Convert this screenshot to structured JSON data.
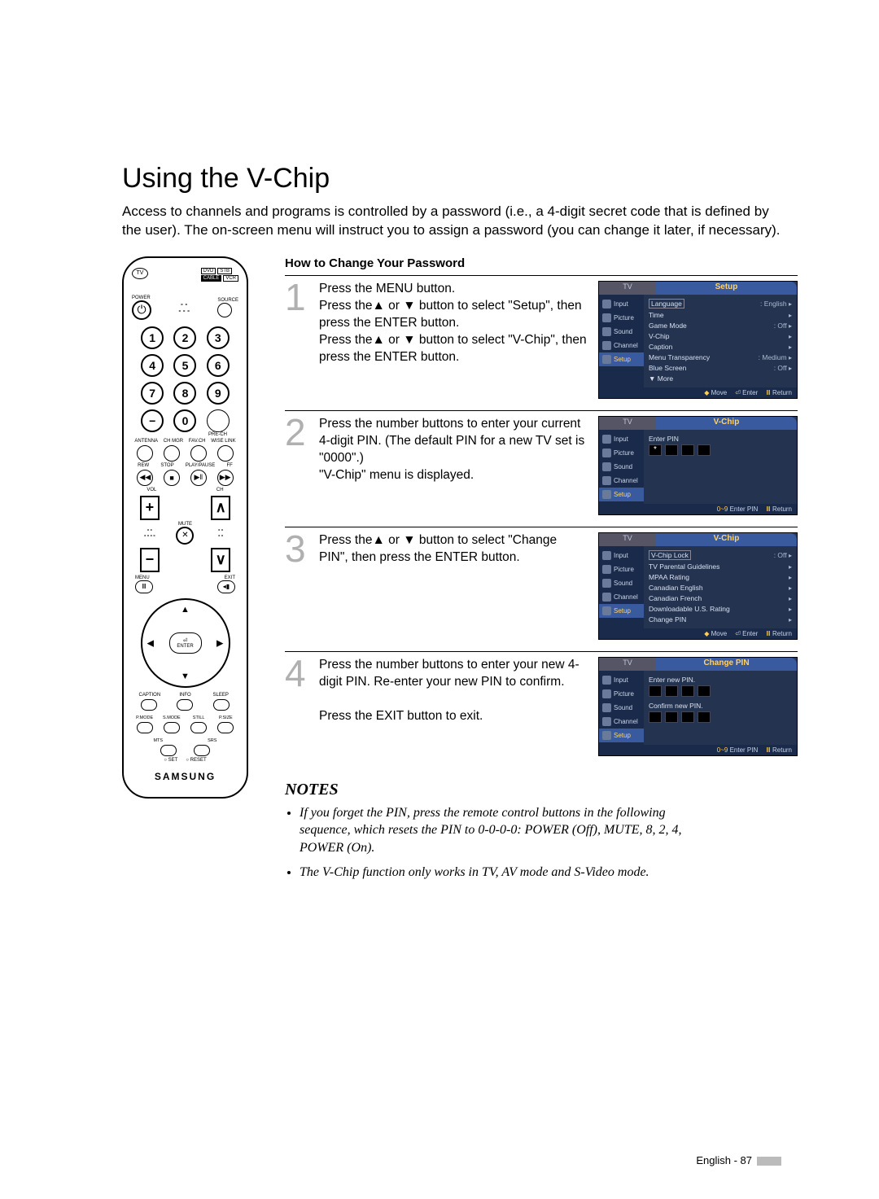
{
  "title": "Using the V-Chip",
  "intro": "Access to channels and programs is controlled by a password (i.e., a 4-digit secret code that is defined by the user). The on-screen menu will instruct you to assign a password (you can change it later, if necessary).",
  "section_title": "How to Change Your Password",
  "steps": [
    {
      "num": "1",
      "text": "Press the MENU button.\nPress the▲ or ▼ button to select \"Setup\", then press the ENTER button.\nPress the▲ or ▼ button to select \"V-Chip\", then press the ENTER button."
    },
    {
      "num": "2",
      "text": "Press the number buttons to enter your current 4-digit PIN. (The default PIN for a new TV set is \"0000\".)\n\"V-Chip\" menu is displayed."
    },
    {
      "num": "3",
      "text": "Press the▲ or ▼ button to select \"Change PIN\", then press the ENTER button."
    },
    {
      "num": "4",
      "text": "Press the number buttons to enter your new 4-digit PIN. Re-enter your new PIN to confirm.\n\nPress the EXIT button to exit."
    }
  ],
  "osd_side_items": [
    "Input",
    "Picture",
    "Sound",
    "Channel",
    "Setup"
  ],
  "osd1": {
    "title": "Setup",
    "items": [
      {
        "label": "Language",
        "val": ": English",
        "boxed": true
      },
      {
        "label": "Time",
        "val": ""
      },
      {
        "label": "Game Mode",
        "val": ": Off"
      },
      {
        "label": "V-Chip",
        "val": ""
      },
      {
        "label": "Caption",
        "val": ""
      },
      {
        "label": "Menu Transparency",
        "val": ": Medium"
      },
      {
        "label": "Blue Screen",
        "val": ": Off"
      },
      {
        "label": "▼ More",
        "val": "",
        "nocar": true
      }
    ],
    "footer": [
      {
        "k": "◆",
        "t": "Move"
      },
      {
        "k": "⏎",
        "t": "Enter"
      },
      {
        "k": "Ⅲ",
        "t": "Return"
      }
    ]
  },
  "osd2": {
    "title": "V-Chip",
    "pin_label": "Enter PIN",
    "footer": [
      {
        "k": "0~9",
        "t": "Enter PIN"
      },
      {
        "k": "Ⅲ",
        "t": "Return"
      }
    ]
  },
  "osd3": {
    "title": "V-Chip",
    "items": [
      {
        "label": "V-Chip Lock",
        "val": ": Off",
        "boxed": true
      },
      {
        "label": "TV Parental Guidelines",
        "val": ""
      },
      {
        "label": "MPAA Rating",
        "val": ""
      },
      {
        "label": "Canadian English",
        "val": ""
      },
      {
        "label": "Canadian French",
        "val": ""
      },
      {
        "label": "Downloadable U.S. Rating",
        "val": ""
      },
      {
        "label": "Change PIN",
        "val": ""
      }
    ],
    "footer": [
      {
        "k": "◆",
        "t": "Move"
      },
      {
        "k": "⏎",
        "t": "Enter"
      },
      {
        "k": "Ⅲ",
        "t": "Return"
      }
    ]
  },
  "osd4": {
    "title": "Change PIN",
    "lbl1": "Enter new PIN.",
    "lbl2": "Confirm new PIN.",
    "footer": [
      {
        "k": "0~9",
        "t": "Enter PIN"
      },
      {
        "k": "Ⅲ",
        "t": "Return"
      }
    ]
  },
  "notes_title": "NOTES",
  "notes": [
    "If you forget the PIN, press the remote control buttons in the following sequence, which resets the PIN to 0-0-0-0: POWER (Off), MUTE, 8, 2, 4, POWER (On).",
    "The V-Chip function only works in TV, AV mode and S-Video mode."
  ],
  "page_footer": "English - 87",
  "remote": {
    "numbers": [
      "1",
      "2",
      "3",
      "4",
      "5",
      "6",
      "7",
      "8",
      "9",
      "0"
    ],
    "brand": "SAMSUNG"
  }
}
